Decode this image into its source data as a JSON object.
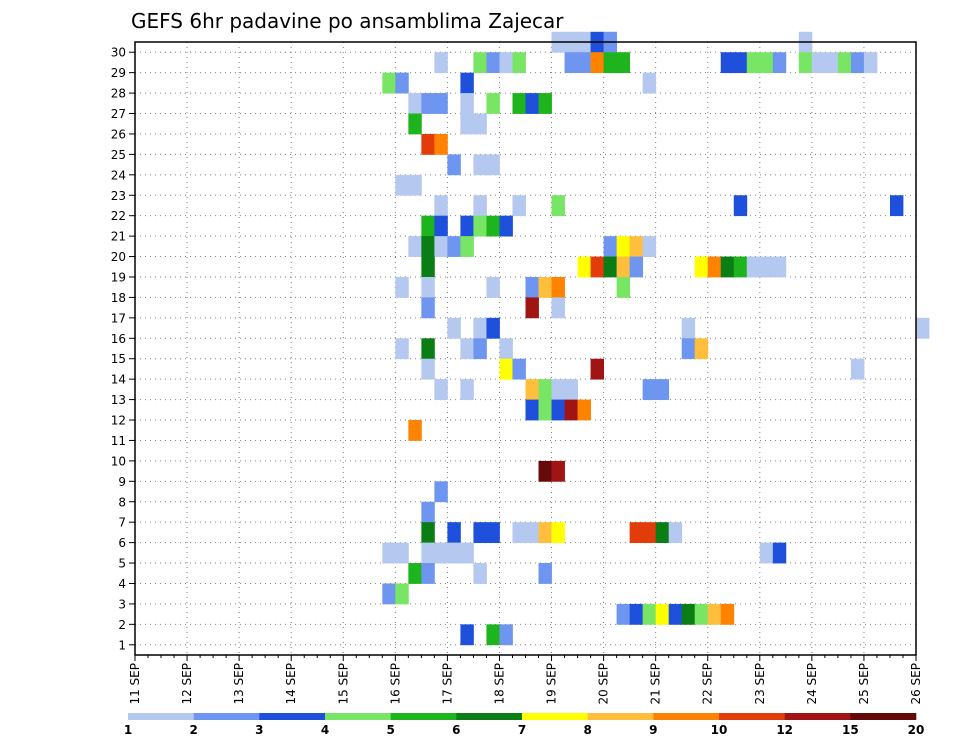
{
  "chart_data": {
    "type": "heatmap",
    "title": "GEFS 6hr padavine po ansamblima Zajecar",
    "xlabel": "",
    "ylabel": "",
    "x_ticks": [
      "11 SEP",
      "12 SEP",
      "13 SEP",
      "14 SEP",
      "15 SEP",
      "16 SEP",
      "17 SEP",
      "18 SEP",
      "19 SEP",
      "20 SEP",
      "21 SEP",
      "22 SEP",
      "23 SEP",
      "24 SEP",
      "25 SEP",
      "26 SEP"
    ],
    "xlim_days": [
      11,
      26
    ],
    "ylim": [
      0,
      30
    ],
    "y_ticks": [
      1,
      2,
      3,
      4,
      5,
      6,
      7,
      8,
      9,
      10,
      11,
      12,
      13,
      14,
      15,
      16,
      17,
      18,
      19,
      20,
      21,
      22,
      23,
      24,
      25,
      26,
      27,
      28,
      29,
      30
    ],
    "grid": true,
    "legend": {
      "position": "bottom",
      "labels": [
        "1",
        "2",
        "3",
        "4",
        "5",
        "6",
        "7",
        "8",
        "9",
        "10",
        "12",
        "15",
        "20"
      ],
      "colors": [
        "#b4c8f0",
        "#6e96f0",
        "#1e50dc",
        "#78e664",
        "#1eb41e",
        "#0a7d14",
        "#ffff00",
        "#ffbe3c",
        "#ff8200",
        "#e13c0a",
        "#a01414",
        "#640a0a"
      ]
    },
    "cells": [
      {
        "m": 30,
        "t": "19 SEP 00",
        "c": 1
      },
      {
        "m": 30,
        "t": "19 SEP 06",
        "c": 1
      },
      {
        "m": 30,
        "t": "19 SEP 12",
        "c": 1
      },
      {
        "m": 30,
        "t": "19 SEP 18",
        "c": 3
      },
      {
        "m": 30,
        "t": "20 SEP 00",
        "c": 2
      },
      {
        "m": 30,
        "t": "23 SEP 18",
        "c": 1
      },
      {
        "m": 29,
        "t": "16 SEP 18",
        "c": 1
      },
      {
        "m": 29,
        "t": "17 SEP 12",
        "c": 4
      },
      {
        "m": 29,
        "t": "17 SEP 18",
        "c": 2
      },
      {
        "m": 29,
        "t": "18 SEP 00",
        "c": 1
      },
      {
        "m": 29,
        "t": "18 SEP 06",
        "c": 4
      },
      {
        "m": 29,
        "t": "19 SEP 06",
        "c": 2
      },
      {
        "m": 29,
        "t": "19 SEP 12",
        "c": 2
      },
      {
        "m": 29,
        "t": "19 SEP 18",
        "c": 9
      },
      {
        "m": 29,
        "t": "20 SEP 00",
        "c": 5
      },
      {
        "m": 29,
        "t": "20 SEP 06",
        "c": 5
      },
      {
        "m": 29,
        "t": "22 SEP 06",
        "c": 3
      },
      {
        "m": 29,
        "t": "22 SEP 12",
        "c": 3
      },
      {
        "m": 29,
        "t": "22 SEP 18",
        "c": 4
      },
      {
        "m": 29,
        "t": "23 SEP 00",
        "c": 4
      },
      {
        "m": 29,
        "t": "23 SEP 06",
        "c": 2
      },
      {
        "m": 29,
        "t": "23 SEP 18",
        "c": 4
      },
      {
        "m": 29,
        "t": "24 SEP 00",
        "c": 1
      },
      {
        "m": 29,
        "t": "24 SEP 06",
        "c": 1
      },
      {
        "m": 29,
        "t": "24 SEP 12",
        "c": 4
      },
      {
        "m": 29,
        "t": "24 SEP 18",
        "c": 2
      },
      {
        "m": 29,
        "t": "25 SEP 00",
        "c": 1
      },
      {
        "m": 28,
        "t": "15 SEP 18",
        "c": 4
      },
      {
        "m": 28,
        "t": "16 SEP 00",
        "c": 2
      },
      {
        "m": 28,
        "t": "17 SEP 06",
        "c": 3
      },
      {
        "m": 28,
        "t": "20 SEP 18",
        "c": 1
      },
      {
        "m": 27,
        "t": "16 SEP 06",
        "c": 1
      },
      {
        "m": 27,
        "t": "16 SEP 12",
        "c": 2
      },
      {
        "m": 27,
        "t": "16 SEP 18",
        "c": 2
      },
      {
        "m": 27,
        "t": "17 SEP 06",
        "c": 1
      },
      {
        "m": 27,
        "t": "17 SEP 18",
        "c": 4
      },
      {
        "m": 27,
        "t": "18 SEP 06",
        "c": 5
      },
      {
        "m": 27,
        "t": "18 SEP 12",
        "c": 3
      },
      {
        "m": 27,
        "t": "18 SEP 18",
        "c": 5
      },
      {
        "m": 26,
        "t": "16 SEP 06",
        "c": 5
      },
      {
        "m": 26,
        "t": "17 SEP 06",
        "c": 1
      },
      {
        "m": 26,
        "t": "17 SEP 12",
        "c": 1
      },
      {
        "m": 25,
        "t": "16 SEP 12",
        "c": 10
      },
      {
        "m": 25,
        "t": "16 SEP 18",
        "c": 9
      },
      {
        "m": 24,
        "t": "17 SEP 00",
        "c": 2
      },
      {
        "m": 24,
        "t": "17 SEP 12",
        "c": 1
      },
      {
        "m": 24,
        "t": "17 SEP 18",
        "c": 1
      },
      {
        "m": 23,
        "t": "16 SEP 00",
        "c": 1
      },
      {
        "m": 23,
        "t": "16 SEP 06",
        "c": 1
      },
      {
        "m": 22,
        "t": "16 SEP 18",
        "c": 1
      },
      {
        "m": 22,
        "t": "17 SEP 12",
        "c": 1
      },
      {
        "m": 22,
        "t": "18 SEP 06",
        "c": 1
      },
      {
        "m": 22,
        "t": "19 SEP 00",
        "c": 4
      },
      {
        "m": 22,
        "t": "22 SEP 12",
        "c": 3
      },
      {
        "m": 22,
        "t": "25 SEP 12",
        "c": 3
      },
      {
        "m": 21,
        "t": "16 SEP 12",
        "c": 5
      },
      {
        "m": 21,
        "t": "16 SEP 18",
        "c": 3
      },
      {
        "m": 21,
        "t": "17 SEP 06",
        "c": 3
      },
      {
        "m": 21,
        "t": "17 SEP 12",
        "c": 4
      },
      {
        "m": 21,
        "t": "17 SEP 18",
        "c": 5
      },
      {
        "m": 21,
        "t": "18 SEP 00",
        "c": 3
      },
      {
        "m": 20,
        "t": "16 SEP 06",
        "c": 1
      },
      {
        "m": 20,
        "t": "16 SEP 12",
        "c": 6
      },
      {
        "m": 20,
        "t": "16 SEP 18",
        "c": 1
      },
      {
        "m": 20,
        "t": "17 SEP 00",
        "c": 2
      },
      {
        "m": 20,
        "t": "17 SEP 06",
        "c": 4
      },
      {
        "m": 20,
        "t": "20 SEP 00",
        "c": 2
      },
      {
        "m": 20,
        "t": "20 SEP 06",
        "c": 7
      },
      {
        "m": 20,
        "t": "20 SEP 12",
        "c": 8
      },
      {
        "m": 20,
        "t": "20 SEP 18",
        "c": 1
      },
      {
        "m": 19,
        "t": "16 SEP 12",
        "c": 6
      },
      {
        "m": 19,
        "t": "19 SEP 12",
        "c": 7
      },
      {
        "m": 19,
        "t": "19 SEP 18",
        "c": 10
      },
      {
        "m": 19,
        "t": "20 SEP 00",
        "c": 6
      },
      {
        "m": 19,
        "t": "20 SEP 06",
        "c": 8
      },
      {
        "m": 19,
        "t": "20 SEP 12",
        "c": 2
      },
      {
        "m": 19,
        "t": "21 SEP 18",
        "c": 7
      },
      {
        "m": 19,
        "t": "22 SEP 00",
        "c": 9
      },
      {
        "m": 19,
        "t": "22 SEP 06",
        "c": 6
      },
      {
        "m": 19,
        "t": "22 SEP 12",
        "c": 5
      },
      {
        "m": 19,
        "t": "22 SEP 18",
        "c": 1
      },
      {
        "m": 19,
        "t": "23 SEP 00",
        "c": 1
      },
      {
        "m": 19,
        "t": "23 SEP 06",
        "c": 1
      },
      {
        "m": 18,
        "t": "16 SEP 00",
        "c": 1
      },
      {
        "m": 18,
        "t": "16 SEP 12",
        "c": 1
      },
      {
        "m": 18,
        "t": "17 SEP 18",
        "c": 1
      },
      {
        "m": 18,
        "t": "18 SEP 12",
        "c": 2
      },
      {
        "m": 18,
        "t": "18 SEP 18",
        "c": 8
      },
      {
        "m": 18,
        "t": "19 SEP 00",
        "c": 9
      },
      {
        "m": 18,
        "t": "20 SEP 06",
        "c": 4
      },
      {
        "m": 17,
        "t": "16 SEP 12",
        "c": 2
      },
      {
        "m": 17,
        "t": "18 SEP 12",
        "c": 11
      },
      {
        "m": 17,
        "t": "19 SEP 00",
        "c": 1
      },
      {
        "m": 16,
        "t": "17 SEP 00",
        "c": 1
      },
      {
        "m": 16,
        "t": "17 SEP 12",
        "c": 1
      },
      {
        "m": 16,
        "t": "17 SEP 18",
        "c": 3
      },
      {
        "m": 16,
        "t": "21 SEP 12",
        "c": 1
      },
      {
        "m": 16,
        "t": "26 SEP 00",
        "c": 1
      },
      {
        "m": 15,
        "t": "16 SEP 00",
        "c": 1
      },
      {
        "m": 15,
        "t": "16 SEP 12",
        "c": 6
      },
      {
        "m": 15,
        "t": "17 SEP 06",
        "c": 1
      },
      {
        "m": 15,
        "t": "17 SEP 12",
        "c": 2
      },
      {
        "m": 15,
        "t": "18 SEP 00",
        "c": 1
      },
      {
        "m": 15,
        "t": "21 SEP 12",
        "c": 2
      },
      {
        "m": 15,
        "t": "21 SEP 18",
        "c": 8
      },
      {
        "m": 14,
        "t": "16 SEP 12",
        "c": 1
      },
      {
        "m": 14,
        "t": "18 SEP 00",
        "c": 7
      },
      {
        "m": 14,
        "t": "18 SEP 06",
        "c": 2
      },
      {
        "m": 14,
        "t": "19 SEP 18",
        "c": 11
      },
      {
        "m": 14,
        "t": "24 SEP 18",
        "c": 1
      },
      {
        "m": 13,
        "t": "16 SEP 18",
        "c": 1
      },
      {
        "m": 13,
        "t": "17 SEP 06",
        "c": 1
      },
      {
        "m": 13,
        "t": "18 SEP 12",
        "c": 8
      },
      {
        "m": 13,
        "t": "18 SEP 18",
        "c": 4
      },
      {
        "m": 13,
        "t": "19 SEP 00",
        "c": 1
      },
      {
        "m": 13,
        "t": "19 SEP 06",
        "c": 1
      },
      {
        "m": 13,
        "t": "20 SEP 18",
        "c": 2
      },
      {
        "m": 13,
        "t": "21 SEP 00",
        "c": 2
      },
      {
        "m": 12,
        "t": "18 SEP 12",
        "c": 3
      },
      {
        "m": 12,
        "t": "18 SEP 18",
        "c": 4
      },
      {
        "m": 12,
        "t": "19 SEP 00",
        "c": 3
      },
      {
        "m": 12,
        "t": "19 SEP 06",
        "c": 11
      },
      {
        "m": 12,
        "t": "19 SEP 12",
        "c": 9
      },
      {
        "m": 11,
        "t": "16 SEP 06",
        "c": 9
      },
      {
        "m": 9,
        "t": "18 SEP 18",
        "c": 12
      },
      {
        "m": 9,
        "t": "19 SEP 00",
        "c": 11
      },
      {
        "m": 8,
        "t": "16 SEP 18",
        "c": 2
      },
      {
        "m": 7,
        "t": "16 SEP 12",
        "c": 2
      },
      {
        "m": 6,
        "t": "16 SEP 12",
        "c": 6
      },
      {
        "m": 6,
        "t": "17 SEP 00",
        "c": 3
      },
      {
        "m": 6,
        "t": "17 SEP 12",
        "c": 3
      },
      {
        "m": 6,
        "t": "17 SEP 18",
        "c": 3
      },
      {
        "m": 6,
        "t": "18 SEP 06",
        "c": 1
      },
      {
        "m": 6,
        "t": "18 SEP 12",
        "c": 1
      },
      {
        "m": 6,
        "t": "18 SEP 18",
        "c": 8
      },
      {
        "m": 6,
        "t": "19 SEP 00",
        "c": 7
      },
      {
        "m": 6,
        "t": "20 SEP 12",
        "c": 10
      },
      {
        "m": 6,
        "t": "20 SEP 18",
        "c": 10
      },
      {
        "m": 6,
        "t": "21 SEP 00",
        "c": 6
      },
      {
        "m": 6,
        "t": "21 SEP 06",
        "c": 1
      },
      {
        "m": 5,
        "t": "15 SEP 18",
        "c": 1
      },
      {
        "m": 5,
        "t": "16 SEP 00",
        "c": 1
      },
      {
        "m": 5,
        "t": "16 SEP 12",
        "c": 1
      },
      {
        "m": 5,
        "t": "16 SEP 18",
        "c": 1
      },
      {
        "m": 5,
        "t": "17 SEP 00",
        "c": 1
      },
      {
        "m": 5,
        "t": "17 SEP 06",
        "c": 1
      },
      {
        "m": 5,
        "t": "23 SEP 00",
        "c": 1
      },
      {
        "m": 5,
        "t": "23 SEP 06",
        "c": 3
      },
      {
        "m": 4,
        "t": "16 SEP 06",
        "c": 5
      },
      {
        "m": 4,
        "t": "16 SEP 12",
        "c": 2
      },
      {
        "m": 4,
        "t": "17 SEP 12",
        "c": 1
      },
      {
        "m": 4,
        "t": "18 SEP 18",
        "c": 2
      },
      {
        "m": 3,
        "t": "15 SEP 18",
        "c": 2
      },
      {
        "m": 3,
        "t": "16 SEP 00",
        "c": 4
      },
      {
        "m": 2,
        "t": "20 SEP 06",
        "c": 2
      },
      {
        "m": 2,
        "t": "20 SEP 12",
        "c": 3
      },
      {
        "m": 2,
        "t": "20 SEP 18",
        "c": 4
      },
      {
        "m": 2,
        "t": "21 SEP 00",
        "c": 7
      },
      {
        "m": 2,
        "t": "21 SEP 06",
        "c": 3
      },
      {
        "m": 2,
        "t": "21 SEP 12",
        "c": 6
      },
      {
        "m": 2,
        "t": "21 SEP 18",
        "c": 4
      },
      {
        "m": 2,
        "t": "22 SEP 00",
        "c": 8
      },
      {
        "m": 2,
        "t": "22 SEP 06",
        "c": 9
      },
      {
        "m": 1,
        "t": "17 SEP 06",
        "c": 3
      },
      {
        "m": 1,
        "t": "17 SEP 18",
        "c": 5
      },
      {
        "m": 1,
        "t": "18 SEP 00",
        "c": 2
      }
    ]
  }
}
